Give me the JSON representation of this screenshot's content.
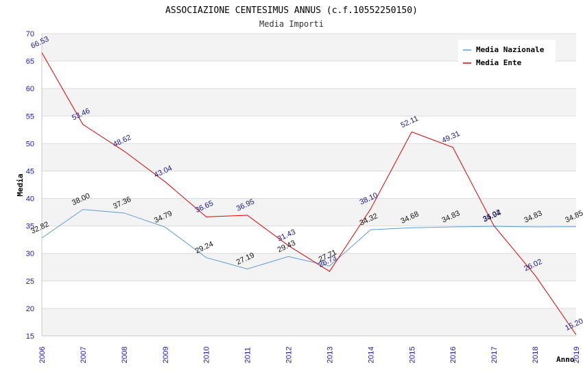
{
  "chart_data": {
    "type": "line",
    "title": "ASSOCIAZIONE CENTESIMUS ANNUS (c.f.10552250150)",
    "subtitle": "Media Importi",
    "xlabel": "Anno",
    "ylabel": "Media",
    "ylim": [
      15,
      70
    ],
    "yticks": [
      15,
      20,
      25,
      30,
      35,
      40,
      45,
      50,
      55,
      60,
      65,
      70
    ],
    "x": [
      "2006",
      "2007",
      "2008",
      "2009",
      "2010",
      "2011",
      "2012",
      "2013",
      "2014",
      "2015",
      "2016",
      "2017",
      "2018",
      "2019"
    ],
    "legend_position": "top-right",
    "series": [
      {
        "name": "Media Nazionale",
        "color": "#5b9bd5",
        "values": [
          32.82,
          38.0,
          37.36,
          34.79,
          29.24,
          27.19,
          29.43,
          27.71,
          34.32,
          34.68,
          34.83,
          34.94,
          34.83,
          34.85
        ],
        "labels": [
          "32.82",
          "38.00",
          "37.36",
          "34.79",
          "29.24",
          "27.19",
          "29.43",
          "27.71",
          "34.32",
          "34.68",
          "34.83",
          "34.94",
          "34.83",
          "34.85"
        ]
      },
      {
        "name": "Media Ente",
        "color": "#dd0000",
        "values": [
          66.53,
          53.46,
          48.62,
          43.04,
          36.65,
          36.95,
          31.43,
          26.73,
          38.1,
          52.11,
          49.31,
          35.02,
          26.02,
          15.2
        ],
        "labels": [
          "66.53",
          "53.46",
          "48.62",
          "43.04",
          "36.65",
          "36.95",
          "31.43",
          "26.73",
          "38.10",
          "52.11",
          "49.31",
          "35.02",
          "26.02",
          "15.20"
        ]
      }
    ]
  }
}
